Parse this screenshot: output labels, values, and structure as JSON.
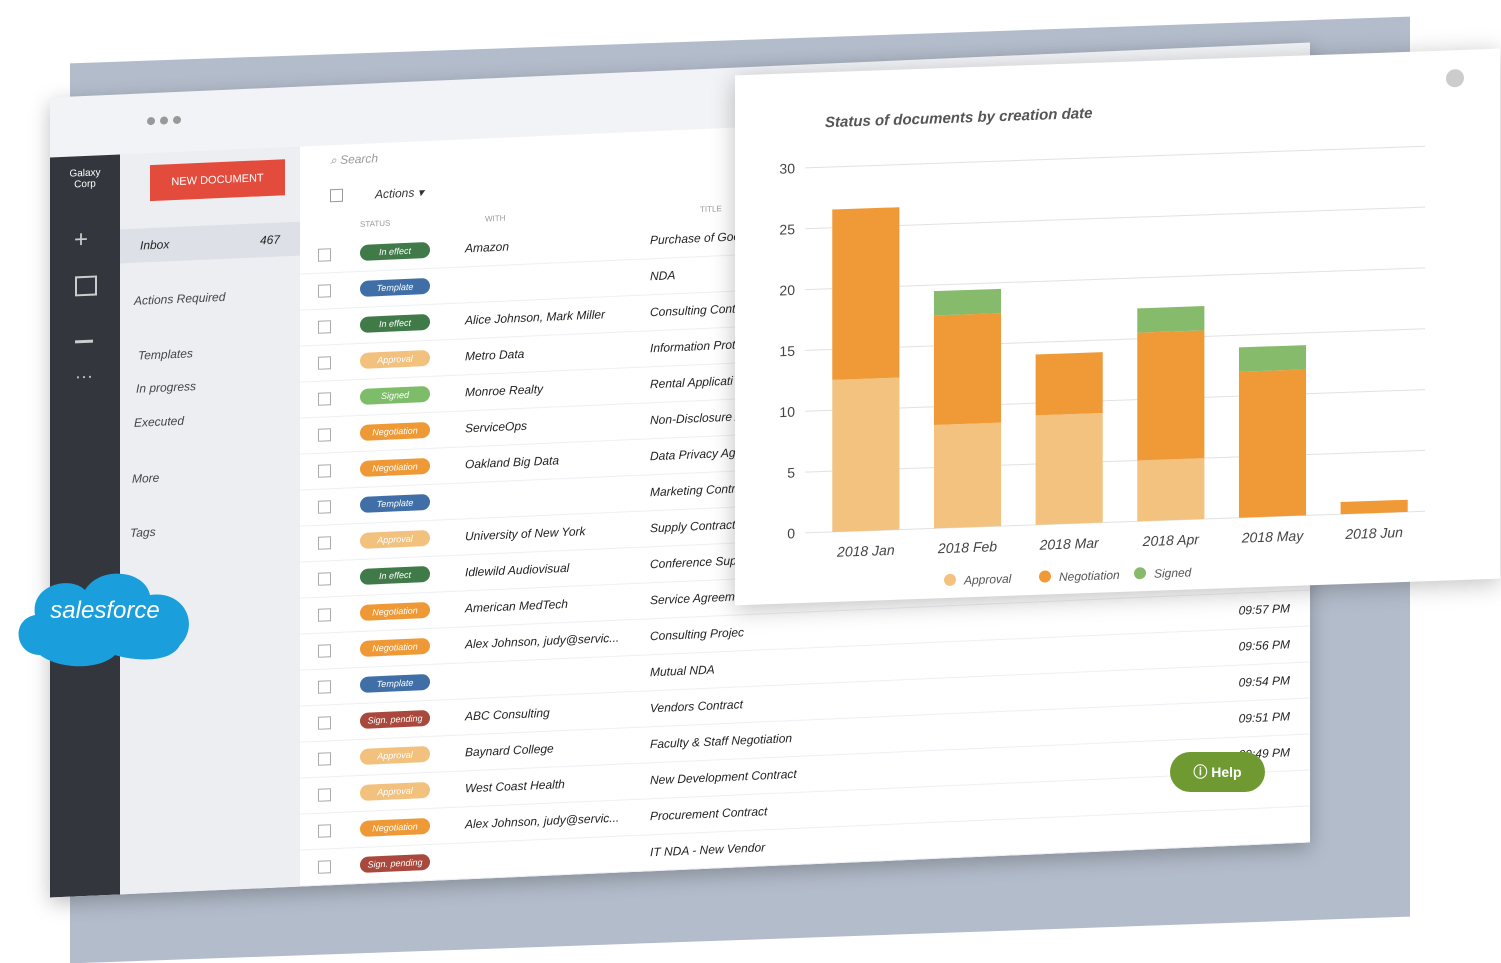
{
  "app": {
    "company": "Galaxy Corp",
    "new_document": "NEW DOCUMENT",
    "search": "Search",
    "actions": "Actions",
    "help": "Help",
    "brand": "salesforce"
  },
  "nav": {
    "inbox": "Inbox",
    "inbox_count": 467,
    "items": [
      "Actions Required",
      "Templates",
      "In progress",
      "Executed",
      "More",
      "Tags"
    ]
  },
  "table": {
    "headers": [
      "STATUS",
      "WITH",
      "TITLE"
    ],
    "rows": [
      {
        "status": "In effect",
        "with": "Amazon",
        "title": "Purchase of Goo"
      },
      {
        "status": "Template",
        "title": "NDA"
      },
      {
        "status": "In effect",
        "with": "Alice Johnson, Mark Miller",
        "title": "Consulting Cont"
      },
      {
        "status": "Approval",
        "with": "Metro Data",
        "title": "Information Prot"
      },
      {
        "status": "Signed",
        "with": "Monroe Realty",
        "title": "Rental Applicati"
      },
      {
        "status": "Negotiation",
        "with": "ServiceOps",
        "title": "Non-Disclosure A"
      },
      {
        "status": "Negotiation",
        "with": "Oakland Big Data",
        "title": "Data Privacy Agr"
      },
      {
        "status": "Template",
        "title": "Marketing Contra"
      },
      {
        "status": "Approval",
        "with": "University of New York",
        "title": "Supply Contract"
      },
      {
        "status": "In effect",
        "with": "Idlewild Audiovisual",
        "title": "Conference Supp"
      },
      {
        "status": "Negotiation",
        "with": "American MedTech",
        "title": "Service Agreemen"
      },
      {
        "status": "Negotiation",
        "with": "Alex Johnson, judy@servic...",
        "title": "Consulting Projec",
        "time": "09:57 PM"
      },
      {
        "status": "Template",
        "title": "Mutual NDA",
        "time": "09:56 PM"
      },
      {
        "status": "Sign. pending",
        "with": "ABC Consulting",
        "title": "Vendors Contract",
        "time": "09:54 PM"
      },
      {
        "status": "Approval",
        "with": "Baynard College",
        "title": "Faculty & Staff Negotiation",
        "time": "09:51 PM"
      },
      {
        "status": "Approval",
        "with": "West Coast Health",
        "title": "New Development Contract",
        "time": "09:49 PM"
      },
      {
        "status": "Negotiation",
        "with": "Alex Johnson, judy@servic...",
        "title": "Procurement Contract"
      },
      {
        "status": "Sign. pending",
        "title": "IT NDA - New Vendor"
      }
    ]
  },
  "chart_data": {
    "type": "bar",
    "stacked": true,
    "title": "Status of documents by creation date",
    "categories": [
      "2018 Jan",
      "2018 Feb",
      "2018 Mar",
      "2018 Apr",
      "2018 May",
      "2018 Jun"
    ],
    "series": [
      {
        "name": "Approval",
        "color": "#f3c27f",
        "values": [
          12.5,
          8.5,
          9,
          5,
          0,
          0
        ]
      },
      {
        "name": "Negotiation",
        "color": "#ef9a36",
        "values": [
          14,
          9,
          5,
          10.5,
          12,
          1
        ]
      },
      {
        "name": "Signed",
        "color": "#86bb6c",
        "values": [
          0,
          2,
          0,
          2,
          2,
          0
        ]
      }
    ],
    "ylim": [
      0,
      30
    ],
    "yticks": [
      0,
      5,
      10,
      15,
      20,
      25,
      30
    ],
    "grid": true,
    "legend": "bottom"
  }
}
